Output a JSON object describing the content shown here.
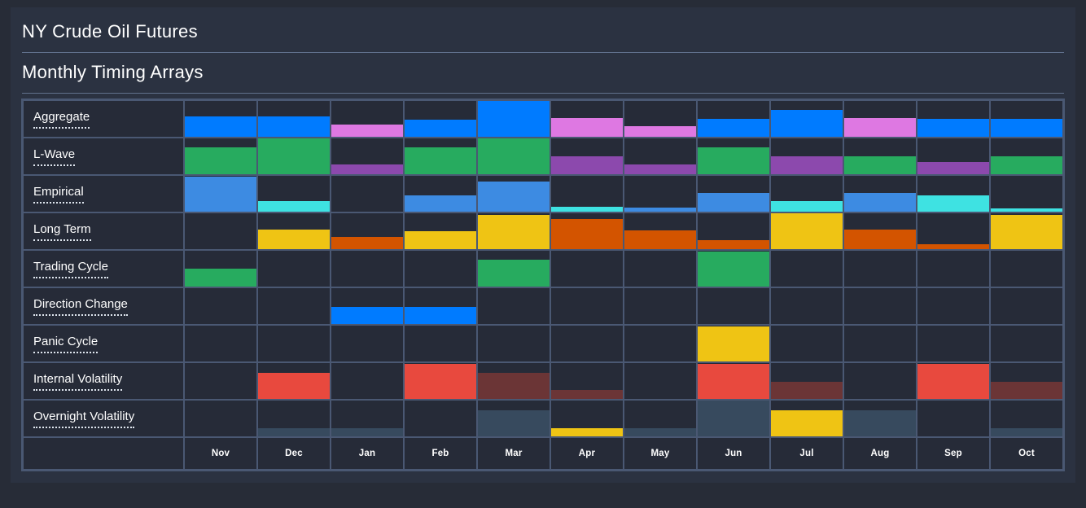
{
  "page": {
    "title": "NY Crude Oil Futures",
    "subtitle": "Monthly Timing Arrays"
  },
  "colors": {
    "blue": "#007bff",
    "magenta": "#de78e2",
    "green": "#27ab5f",
    "purple": "#8c49ad",
    "medblue": "#3d8be2",
    "cyan": "#3ee2e2",
    "yellow": "#efc414",
    "orange": "#d35400",
    "red": "#e8493e",
    "maroon": "#6b3536",
    "slate": "#374a5e",
    "panel_bg": "#2b3241",
    "page_bg": "#272c37",
    "cell_bg": "#262b38",
    "grid_border": "#4a5873"
  },
  "chart_data": {
    "type": "heatmap",
    "title": "NY Crude Oil Futures",
    "subtitle": "Monthly Timing Arrays",
    "note": "Each cell holds a bottom-anchored bar; pct is bar height as percent of row height; color keys map to colors object",
    "months": [
      "Nov",
      "Dec",
      "Jan",
      "Feb",
      "Mar",
      "Apr",
      "May",
      "Jun",
      "Jul",
      "Aug",
      "Sep",
      "Oct"
    ],
    "rows": [
      {
        "label": "Aggregate",
        "cells": [
          {
            "color": "blue",
            "pct": 57
          },
          {
            "color": "blue",
            "pct": 57
          },
          {
            "color": "magenta",
            "pct": 35
          },
          {
            "color": "blue",
            "pct": 47
          },
          {
            "color": "blue",
            "pct": 100
          },
          {
            "color": "magenta",
            "pct": 53
          },
          {
            "color": "magenta",
            "pct": 30
          },
          {
            "color": "blue",
            "pct": 49
          },
          {
            "color": "blue",
            "pct": 74
          },
          {
            "color": "magenta",
            "pct": 53
          },
          {
            "color": "blue",
            "pct": 49
          },
          {
            "color": "blue",
            "pct": 49
          }
        ]
      },
      {
        "label": "L-Wave",
        "cells": [
          {
            "color": "green",
            "pct": 76
          },
          {
            "color": "green",
            "pct": 100
          },
          {
            "color": "purple",
            "pct": 28
          },
          {
            "color": "green",
            "pct": 76
          },
          {
            "color": "green",
            "pct": 100
          },
          {
            "color": "purple",
            "pct": 50
          },
          {
            "color": "purple",
            "pct": 28
          },
          {
            "color": "green",
            "pct": 76
          },
          {
            "color": "purple",
            "pct": 50
          },
          {
            "color": "green",
            "pct": 50
          },
          {
            "color": "purple",
            "pct": 33
          },
          {
            "color": "green",
            "pct": 50
          }
        ]
      },
      {
        "label": "Empirical",
        "cells": [
          {
            "color": "medblue",
            "pct": 97
          },
          {
            "color": "cyan",
            "pct": 30
          },
          null,
          {
            "color": "medblue",
            "pct": 45
          },
          {
            "color": "medblue",
            "pct": 84
          },
          {
            "color": "cyan",
            "pct": 13
          },
          {
            "color": "medblue",
            "pct": 11
          },
          {
            "color": "medblue",
            "pct": 53
          },
          {
            "color": "cyan",
            "pct": 29
          },
          {
            "color": "medblue",
            "pct": 53
          },
          {
            "color": "cyan",
            "pct": 45
          },
          {
            "color": "cyan",
            "pct": 9
          }
        ]
      },
      {
        "label": "Long Term",
        "cells": [
          null,
          {
            "color": "yellow",
            "pct": 55
          },
          {
            "color": "orange",
            "pct": 33
          },
          {
            "color": "yellow",
            "pct": 50
          },
          {
            "color": "yellow",
            "pct": 95
          },
          {
            "color": "orange",
            "pct": 85
          },
          {
            "color": "orange",
            "pct": 53
          },
          {
            "color": "orange",
            "pct": 25
          },
          {
            "color": "yellow",
            "pct": 100
          },
          {
            "color": "orange",
            "pct": 55
          },
          {
            "color": "orange",
            "pct": 13
          },
          {
            "color": "yellow",
            "pct": 95
          }
        ]
      },
      {
        "label": "Trading Cycle",
        "cells": [
          {
            "color": "green",
            "pct": 50
          },
          null,
          null,
          null,
          {
            "color": "green",
            "pct": 76
          },
          null,
          null,
          {
            "color": "green",
            "pct": 97
          },
          null,
          null,
          null,
          null
        ]
      },
      {
        "label": "Direction Change",
        "cells": [
          null,
          null,
          {
            "color": "blue",
            "pct": 47
          },
          {
            "color": "blue",
            "pct": 47
          },
          null,
          null,
          null,
          null,
          null,
          null,
          null,
          null
        ]
      },
      {
        "label": "Panic Cycle",
        "cells": [
          null,
          null,
          null,
          null,
          null,
          null,
          null,
          {
            "color": "yellow",
            "pct": 97
          },
          null,
          null,
          null,
          null
        ]
      },
      {
        "label": "Internal Volatility",
        "cells": [
          null,
          {
            "color": "red",
            "pct": 73
          },
          null,
          {
            "color": "red",
            "pct": 98
          },
          {
            "color": "maroon",
            "pct": 73
          },
          {
            "color": "maroon",
            "pct": 24
          },
          null,
          {
            "color": "red",
            "pct": 98
          },
          {
            "color": "maroon",
            "pct": 47
          },
          null,
          {
            "color": "red",
            "pct": 98
          },
          {
            "color": "maroon",
            "pct": 47
          }
        ]
      },
      {
        "label": "Overnight Volatility",
        "cells": [
          null,
          {
            "color": "slate",
            "pct": 23
          },
          {
            "color": "slate",
            "pct": 23
          },
          null,
          {
            "color": "slate",
            "pct": 72
          },
          {
            "color": "yellow",
            "pct": 23
          },
          {
            "color": "slate",
            "pct": 23
          },
          {
            "color": "slate",
            "pct": 100
          },
          {
            "color": "yellow",
            "pct": 73
          },
          {
            "color": "slate",
            "pct": 73
          },
          null,
          {
            "color": "slate",
            "pct": 23
          }
        ]
      }
    ]
  }
}
